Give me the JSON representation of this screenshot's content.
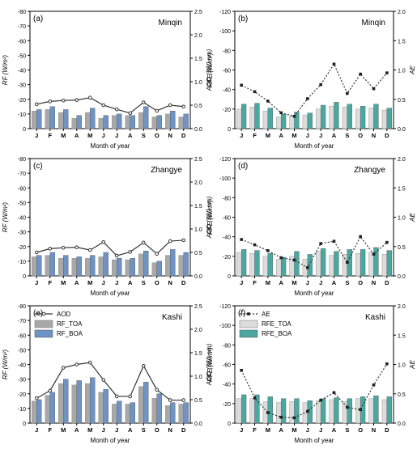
{
  "colors": {
    "rf_toa": "#a8a8a8",
    "rf_boa": "#6e93c4",
    "rfe_toa": "#dcdcdc",
    "rfe_boa": "#4aa8a0",
    "line": "#333333"
  },
  "months": [
    "J",
    "F",
    "M",
    "A",
    "M",
    "J",
    "J",
    "A",
    "S",
    "O",
    "N",
    "D"
  ],
  "chart_data": [
    {
      "panel": "(a)",
      "site": "Minqin",
      "type": "bar",
      "xlabel": "Month of year",
      "ylabel": "RF (W/m²)",
      "y2label": "AOD (550 nm)",
      "ylim": [
        0,
        -80
      ],
      "yticks": [
        0,
        -10,
        -20,
        -30,
        -40,
        -50,
        -60,
        -70,
        -80
      ],
      "y2lim": [
        0,
        2.5
      ],
      "y2ticks": [
        "0.0",
        "0.5",
        "1.0",
        "1.5",
        "2.0",
        "2.5"
      ],
      "categories": [
        "J",
        "F",
        "M",
        "A",
        "M",
        "J",
        "J",
        "A",
        "S",
        "O",
        "N",
        "D"
      ],
      "series": [
        {
          "name": "RF_TOA",
          "kind": "bar",
          "values": [
            -12,
            -13,
            -11,
            -7,
            -11,
            -7,
            -9,
            -9,
            -11,
            -8,
            -10,
            -8
          ]
        },
        {
          "name": "RF_BOA",
          "kind": "bar",
          "values": [
            -13,
            -15,
            -13,
            -9,
            -14,
            -9,
            -10,
            -9,
            -15,
            -9,
            -12,
            -10
          ]
        },
        {
          "name": "AOD",
          "kind": "line",
          "axis": "right",
          "values": [
            0.52,
            0.58,
            0.6,
            0.61,
            0.66,
            0.5,
            0.41,
            0.33,
            0.56,
            0.38,
            0.5,
            0.47
          ]
        }
      ]
    },
    {
      "panel": "(b)",
      "site": "Minqin",
      "type": "bar",
      "xlabel": "Month of year",
      "ylabel": "RFE (W/m²)",
      "y2label": "AE",
      "ylim": [
        0,
        -120
      ],
      "yticks": [
        0,
        -20,
        -40,
        -60,
        -80,
        -100,
        -120
      ],
      "y2lim": [
        0,
        2.0
      ],
      "y2ticks": [
        "0.0",
        "0.5",
        "1.0",
        "1.5",
        "2.0"
      ],
      "categories": [
        "J",
        "F",
        "M",
        "A",
        "M",
        "J",
        "J",
        "A",
        "S",
        "O",
        "N",
        "D"
      ],
      "series": [
        {
          "name": "RFE_TOA",
          "kind": "bar",
          "values": [
            -20,
            -22,
            -18,
            -12,
            -13,
            -14,
            -20,
            -23,
            -22,
            -20,
            -21,
            -19
          ]
        },
        {
          "name": "RFE_BOA",
          "kind": "bar",
          "values": [
            -25,
            -26,
            -21,
            -15,
            -17,
            -16,
            -24,
            -27,
            -25,
            -23,
            -25,
            -21
          ]
        },
        {
          "name": "AE",
          "kind": "line",
          "axis": "right",
          "values": [
            0.74,
            0.63,
            0.47,
            0.27,
            0.21,
            0.51,
            0.75,
            1.1,
            0.6,
            0.93,
            0.68,
            0.95
          ]
        }
      ]
    },
    {
      "panel": "(c)",
      "site": "Zhangye",
      "type": "bar",
      "xlabel": "Month of year",
      "ylabel": "RF (W/m²)",
      "y2label": "AOD (550 nm)",
      "ylim": [
        0,
        -80
      ],
      "yticks": [
        0,
        -10,
        -20,
        -30,
        -40,
        -50,
        -60,
        -70,
        -80
      ],
      "y2lim": [
        0,
        2.5
      ],
      "y2ticks": [
        "0.0",
        "0.5",
        "1.0",
        "1.5",
        "2.0",
        "2.5"
      ],
      "categories": [
        "J",
        "F",
        "M",
        "A",
        "M",
        "J",
        "J",
        "A",
        "S",
        "O",
        "N",
        "D"
      ],
      "series": [
        {
          "name": "RF_TOA",
          "kind": "bar",
          "values": [
            -13,
            -14,
            -12,
            -12,
            -12,
            -13,
            -11,
            -11,
            -15,
            -9,
            -14,
            -14
          ]
        },
        {
          "name": "RF_BOA",
          "kind": "bar",
          "values": [
            -14,
            -16,
            -14,
            -13,
            -14,
            -16,
            -12,
            -12,
            -17,
            -10,
            -18,
            -16
          ]
        },
        {
          "name": "AOD",
          "kind": "line",
          "axis": "right",
          "values": [
            0.5,
            0.58,
            0.6,
            0.61,
            0.55,
            0.72,
            0.43,
            0.51,
            0.71,
            0.47,
            0.74,
            0.76
          ]
        }
      ]
    },
    {
      "panel": "(d)",
      "site": "Zhangye",
      "type": "bar",
      "xlabel": "Month of year",
      "ylabel": "RFE (W/m²)",
      "y2label": "AE",
      "ylim": [
        0,
        -120
      ],
      "yticks": [
        0,
        -20,
        -40,
        -60,
        -80,
        -100,
        -120
      ],
      "y2lim": [
        0,
        2.0
      ],
      "y2ticks": [
        "0.0",
        "0.5",
        "1.0",
        "1.5",
        "2.0"
      ],
      "categories": [
        "J",
        "F",
        "M",
        "A",
        "M",
        "J",
        "J",
        "A",
        "S",
        "O",
        "N",
        "D"
      ],
      "series": [
        {
          "name": "RFE_TOA",
          "kind": "bar",
          "values": [
            -24,
            -23,
            -20,
            -17,
            -20,
            -17,
            -25,
            -21,
            -22,
            -23,
            -24,
            -22
          ]
        },
        {
          "name": "RFE_BOA",
          "kind": "bar",
          "values": [
            -27,
            -26,
            -23,
            -19,
            -25,
            -22,
            -28,
            -25,
            -27,
            -27,
            -29,
            -26
          ]
        },
        {
          "name": "AE",
          "kind": "line",
          "axis": "right",
          "values": [
            0.62,
            0.53,
            0.43,
            0.31,
            0.27,
            0.14,
            0.55,
            0.59,
            0.23,
            0.67,
            0.37,
            0.57
          ]
        }
      ]
    },
    {
      "panel": "(e)",
      "site": "Kashi",
      "type": "bar",
      "xlabel": "Month of year",
      "ylabel": "RF (W/m²)",
      "y2label": "AOD (550 nm)",
      "ylim": [
        0,
        -80
      ],
      "yticks": [
        0,
        -10,
        -20,
        -30,
        -40,
        -50,
        -60,
        -70,
        -80
      ],
      "y2lim": [
        0,
        2.5
      ],
      "y2ticks": [
        "0.0",
        "0.5",
        "1.0",
        "1.5",
        "2.0",
        "2.5"
      ],
      "categories": [
        "J",
        "F",
        "M",
        "A",
        "M",
        "J",
        "J",
        "A",
        "S",
        "O",
        "N",
        "D"
      ],
      "series": [
        {
          "name": "RF_TOA",
          "kind": "bar",
          "values": [
            -15,
            -19,
            -27,
            -26,
            -27,
            -21,
            -13,
            -13,
            -25,
            -17,
            -12,
            -13
          ]
        },
        {
          "name": "RF_BOA",
          "kind": "bar",
          "values": [
            -16,
            -21,
            -30,
            -29,
            -31,
            -23,
            -15,
            -14,
            -28,
            -20,
            -14,
            -14
          ]
        },
        {
          "name": "AOD",
          "kind": "line",
          "axis": "right",
          "values": [
            0.53,
            0.69,
            1.18,
            1.25,
            1.29,
            0.92,
            0.57,
            0.57,
            1.22,
            0.71,
            0.49,
            0.49
          ]
        }
      ]
    },
    {
      "panel": "(f)",
      "site": "Kashi",
      "type": "bar",
      "xlabel": "Month of year",
      "ylabel": "RFE (W/m²)",
      "y2label": "AE",
      "ylim": [
        0,
        -120
      ],
      "yticks": [
        0,
        -20,
        -40,
        -60,
        -80,
        -100,
        -120
      ],
      "y2lim": [
        0,
        2.0
      ],
      "y2ticks": [
        "0.0",
        "0.5",
        "1.0",
        "1.5",
        "2.0"
      ],
      "categories": [
        "J",
        "F",
        "M",
        "A",
        "M",
        "J",
        "J",
        "A",
        "S",
        "O",
        "N",
        "D"
      ],
      "series": [
        {
          "name": "RFE_TOA",
          "kind": "bar",
          "values": [
            -25,
            -25,
            -22,
            -21,
            -22,
            -21,
            -23,
            -24,
            -22,
            -25,
            -25,
            -24
          ]
        },
        {
          "name": "RFE_BOA",
          "kind": "bar",
          "values": [
            -29,
            -29,
            -27,
            -25,
            -25,
            -23,
            -25,
            -26,
            -25,
            -27,
            -28,
            -27
          ]
        },
        {
          "name": "AE",
          "kind": "line",
          "axis": "right",
          "values": [
            0.9,
            0.43,
            0.18,
            0.1,
            0.09,
            0.2,
            0.39,
            0.52,
            0.27,
            0.23,
            0.65,
            1.01
          ]
        }
      ]
    }
  ],
  "legend_left": {
    "aod": "AOD",
    "toa": "RF_TOA",
    "boa": "RF_BOA"
  },
  "legend_right": {
    "ae": "AE",
    "toa": "RFE_TOA",
    "boa": "RFE_BOA"
  }
}
